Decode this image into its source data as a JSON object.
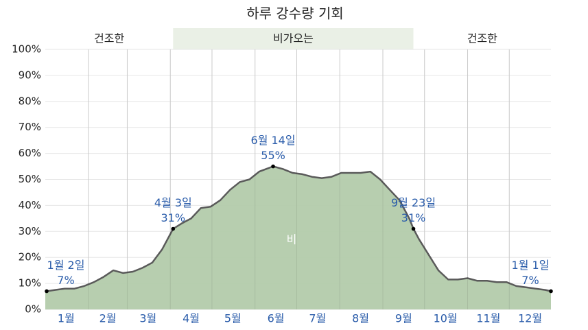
{
  "chart_data": {
    "type": "area",
    "title": "하루 강수량 기회",
    "series": [
      {
        "name": "비",
        "color": "#b3cbab",
        "line_color": "#5a5a5a",
        "x": [
          1,
          2,
          8,
          15,
          22,
          29,
          36,
          43,
          50,
          57,
          64,
          71,
          78,
          85,
          93,
          99,
          106,
          113,
          120,
          127,
          134,
          141,
          148,
          155,
          160,
          165,
          172,
          179,
          186,
          193,
          200,
          207,
          214,
          221,
          228,
          235,
          242,
          249,
          256,
          263,
          266,
          270,
          277,
          284,
          291,
          298,
          305,
          312,
          319,
          326,
          333,
          340,
          347,
          354,
          361,
          365
        ],
        "values": [
          7,
          7,
          7.5,
          8,
          8,
          9,
          10.5,
          12.5,
          15,
          14,
          14.5,
          16,
          18,
          23,
          31,
          33,
          35,
          39,
          39.5,
          42,
          46,
          49,
          50,
          53,
          54,
          55,
          54,
          52.5,
          52,
          51,
          50.5,
          51,
          52.5,
          52.5,
          52.5,
          53,
          50,
          46,
          42,
          35,
          31,
          27,
          21,
          15,
          11.5,
          11.5,
          12,
          11,
          11,
          10.5,
          10.5,
          9,
          8.5,
          8,
          7.5,
          7
        ]
      }
    ],
    "xlim": [
      1,
      365
    ],
    "xticks": [
      {
        "value": 16,
        "label": "1월"
      },
      {
        "value": 46,
        "label": "2월"
      },
      {
        "value": 75,
        "label": "3월"
      },
      {
        "value": 106,
        "label": "4월"
      },
      {
        "value": 136,
        "label": "5월"
      },
      {
        "value": 167,
        "label": "6월"
      },
      {
        "value": 197,
        "label": "7월"
      },
      {
        "value": 228,
        "label": "8월"
      },
      {
        "value": 259,
        "label": "9월"
      },
      {
        "value": 289,
        "label": "10월"
      },
      {
        "value": 320,
        "label": "11월"
      },
      {
        "value": 350,
        "label": "12월"
      }
    ],
    "xgrid": [
      32,
      60,
      91,
      121,
      152,
      182,
      213,
      244,
      274,
      305,
      335
    ],
    "ylim": [
      0,
      100
    ],
    "yticks": [
      {
        "value": 0,
        "label": "0%"
      },
      {
        "value": 10,
        "label": "10%"
      },
      {
        "value": 20,
        "label": "20%"
      },
      {
        "value": 30,
        "label": "30%"
      },
      {
        "value": 40,
        "label": "40%"
      },
      {
        "value": 50,
        "label": "50%"
      },
      {
        "value": 60,
        "label": "60%"
      },
      {
        "value": 70,
        "label": "70%"
      },
      {
        "value": 80,
        "label": "80%"
      },
      {
        "value": 90,
        "label": "90%"
      },
      {
        "value": 100,
        "label": "100%"
      }
    ],
    "grid": true,
    "bands": [
      {
        "label": "건조한",
        "start": 1,
        "end": 93,
        "color": "#ffffff"
      },
      {
        "label": "비가오는",
        "start": 93,
        "end": 266,
        "color": "#eaf0e6"
      },
      {
        "label": "건조한",
        "start": 266,
        "end": 365,
        "color": "#ffffff"
      }
    ],
    "annotations": [
      {
        "x": 2,
        "date": "1월 2일",
        "value": 7,
        "value_label": "7%"
      },
      {
        "x": 93,
        "date": "4월 3일",
        "value": 31,
        "value_label": "31%"
      },
      {
        "x": 165,
        "date": "6월 14일",
        "value": 55,
        "value_label": "55%"
      },
      {
        "x": 266,
        "date": "9월 23일",
        "value": 31,
        "value_label": "31%"
      },
      {
        "x": 365,
        "date": "1월 1일",
        "value": 7,
        "value_label": "7%"
      }
    ]
  }
}
